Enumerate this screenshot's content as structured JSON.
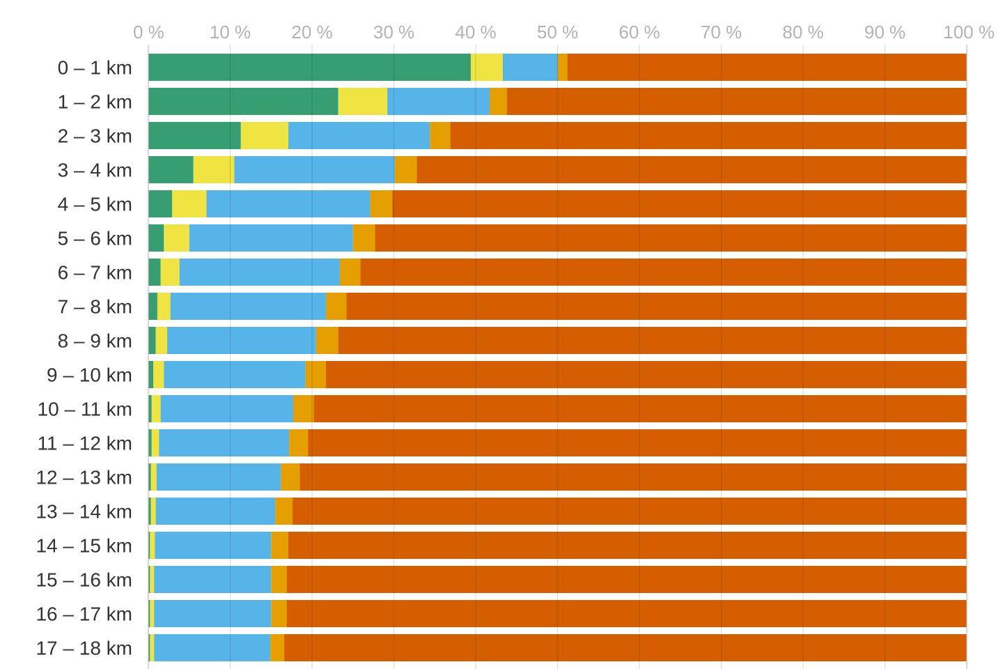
{
  "chart_data": {
    "type": "bar",
    "orientation": "horizontal",
    "stacked": true,
    "normalized": true,
    "title": "",
    "xlabel": "",
    "ylabel": "",
    "xlim": [
      0,
      100
    ],
    "x_ticks": [
      "0 %",
      "10 %",
      "20 %",
      "30 %",
      "40 %",
      "50 %",
      "60 %",
      "70 %",
      "80 %",
      "90 %",
      "100 %"
    ],
    "x_tick_values": [
      0,
      10,
      20,
      30,
      40,
      50,
      60,
      70,
      80,
      90,
      100
    ],
    "grid": true,
    "legend": "none",
    "categories": [
      "0 – 1 km",
      "1 – 2 km",
      "2 – 3 km",
      "3 – 4 km",
      "4 – 5 km",
      "5 – 6 km",
      "6 – 7 km",
      "7 – 8 km",
      "8 – 9 km",
      "9 – 10 km",
      "10 – 11 km",
      "11 – 12 km",
      "12 – 13 km",
      "13 – 14 km",
      "14 – 15 km",
      "15 – 16 km",
      "16 – 17 km",
      "17 – 18 km"
    ],
    "series": [
      {
        "color": "#379e72",
        "values": [
          39.4,
          23.2,
          11.3,
          5.5,
          2.9,
          1.9,
          1.5,
          1.1,
          0.9,
          0.6,
          0.4,
          0.4,
          0.3,
          0.3,
          0.2,
          0.2,
          0.2,
          0.2
        ]
      },
      {
        "color": "#f0e442",
        "values": [
          3.9,
          6.0,
          5.8,
          5.0,
          4.2,
          3.1,
          2.3,
          1.6,
          1.4,
          1.3,
          1.1,
          0.9,
          0.7,
          0.6,
          0.6,
          0.5,
          0.5,
          0.5
        ]
      },
      {
        "color": "#56b4e9",
        "values": [
          6.7,
          12.5,
          17.3,
          19.6,
          20.0,
          20.0,
          19.6,
          19.0,
          18.2,
          17.3,
          16.2,
          15.9,
          15.2,
          14.6,
          14.2,
          14.3,
          14.3,
          14.2
        ]
      },
      {
        "color": "#e69f00",
        "values": [
          1.2,
          2.1,
          2.5,
          2.7,
          2.7,
          2.7,
          2.5,
          2.5,
          2.7,
          2.5,
          2.5,
          2.3,
          2.3,
          2.1,
          2.1,
          1.9,
          1.9,
          1.7
        ]
      },
      {
        "color": "#d55e00",
        "values": [
          48.8,
          56.2,
          63.1,
          67.2,
          70.2,
          72.3,
          74.1,
          75.8,
          76.8,
          78.3,
          79.8,
          80.5,
          81.5,
          82.4,
          82.9,
          83.1,
          83.1,
          83.4
        ]
      }
    ]
  }
}
